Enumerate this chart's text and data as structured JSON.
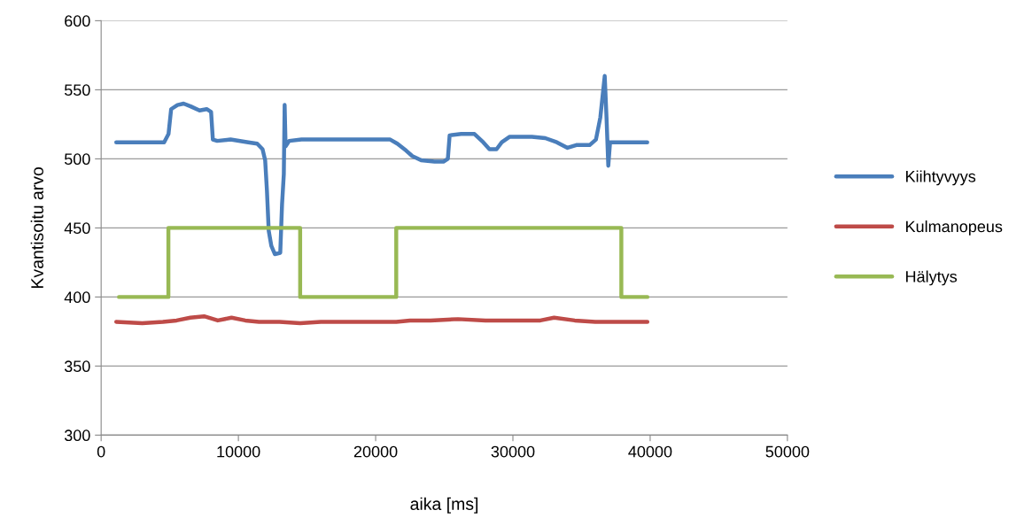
{
  "chart_data": {
    "type": "line",
    "xlabel": "aika [ms]",
    "ylabel": "Kvantisoitu arvo",
    "xlim": [
      0,
      50000
    ],
    "xticks": [
      0,
      10000,
      20000,
      30000,
      40000,
      50000
    ],
    "ylim": [
      300,
      600
    ],
    "yticks": [
      300,
      350,
      400,
      450,
      500,
      550,
      600
    ],
    "grid": "y",
    "legend": "right",
    "line_style": "solid",
    "marker": "none",
    "series": [
      {
        "name": "Kiihtyvyys",
        "color": "#4a7ebb",
        "x": [
          1100,
          4590,
          4910,
          5100,
          5560,
          6010,
          6520,
          7170,
          7690,
          8010,
          8140,
          8460,
          9430,
          10720,
          11370,
          11760,
          11950,
          12080,
          12210,
          12400,
          12660,
          13050,
          13180,
          13310,
          13370,
          13440,
          13700,
          14600,
          18480,
          21060,
          21580,
          22220,
          22670,
          23320,
          24290,
          24940,
          25260,
          25390,
          26230,
          27200,
          27840,
          28290,
          28810,
          29190,
          29770,
          31390,
          32360,
          33200,
          33980,
          34620,
          35590,
          36050,
          36370,
          36690,
          36820,
          36950,
          37080,
          37860,
          39790
        ],
        "values": [
          512,
          512,
          518,
          536,
          539,
          540,
          538,
          535,
          536,
          534,
          514,
          513,
          514,
          512,
          511,
          507,
          499,
          477,
          448,
          437,
          431,
          432,
          467,
          489,
          539,
          509,
          513,
          514,
          514,
          514,
          511,
          506,
          502,
          499,
          498,
          498,
          500,
          517,
          518,
          518,
          512,
          507,
          507,
          512,
          516,
          516,
          515,
          512,
          508,
          510,
          510,
          514,
          530,
          560,
          530,
          495,
          512,
          512,
          512
        ]
      },
      {
        "name": "Kulmanopeus",
        "color": "#be4b48",
        "x": [
          1100,
          3000,
          4500,
          5500,
          6500,
          7500,
          8500,
          9500,
          10500,
          11500,
          13000,
          14500,
          16000,
          18000,
          20000,
          21500,
          22500,
          24000,
          26000,
          28000,
          30000,
          32000,
          33000,
          34500,
          36000,
          37000,
          38000,
          39800
        ],
        "values": [
          382,
          381,
          382,
          383,
          385,
          386,
          383,
          385,
          383,
          382,
          382,
          381,
          382,
          382,
          382,
          382,
          383,
          383,
          384,
          383,
          383,
          383,
          385,
          383,
          382,
          382,
          382,
          382
        ]
      },
      {
        "name": "Hälytys",
        "color": "#98b954",
        "type": "step",
        "x": [
          1300,
          4900,
          14500,
          21500,
          37900,
          39800
        ],
        "values": [
          400,
          450,
          400,
          450,
          400,
          400
        ]
      }
    ]
  }
}
